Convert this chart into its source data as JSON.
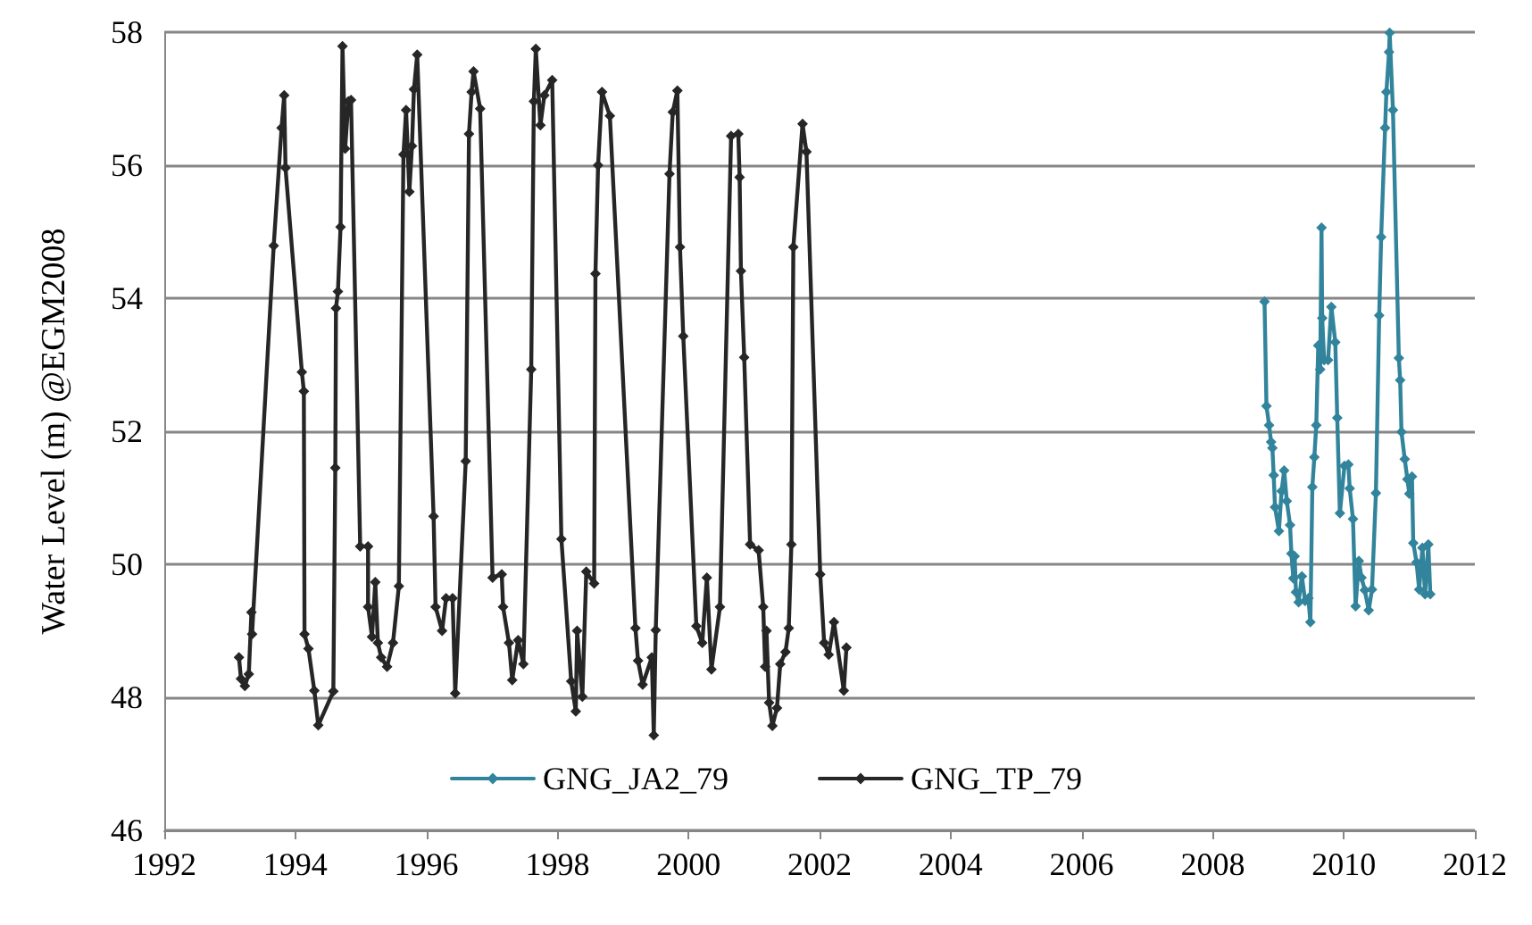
{
  "chart_data": {
    "type": "line",
    "ylabel": "Water Level (m) @EGM2008",
    "xlim": [
      1992,
      2012
    ],
    "xticks": [
      1992,
      1994,
      1996,
      1998,
      2000,
      2002,
      2004,
      2006,
      2008,
      2010,
      2012
    ],
    "ylim": [
      46,
      58
    ],
    "yticks": [
      46,
      48,
      50,
      52,
      54,
      56,
      58
    ],
    "grid": "y",
    "legend": "bottom",
    "marker": "diamond",
    "line_style": "solid",
    "series": [
      {
        "name": "GNG_JA2_79",
        "color": "#31849b",
        "x": [
          2008.79,
          2008.82,
          2008.86,
          2008.89,
          2008.91,
          2008.93,
          2008.95,
          2009.01,
          2009.05,
          2009.09,
          2009.13,
          2009.18,
          2009.2,
          2009.23,
          2009.25,
          2009.27,
          2009.31,
          2009.36,
          2009.41,
          2009.46,
          2009.49,
          2009.52,
          2009.55,
          2009.58,
          2009.61,
          2009.64,
          2009.66,
          2009.67,
          2009.7,
          2009.76,
          2009.81,
          2009.87,
          2009.9,
          2009.94,
          2010.01,
          2010.07,
          2010.09,
          2010.14,
          2010.18,
          2010.23,
          2010.27,
          2010.32,
          2010.38,
          2010.43,
          2010.49,
          2010.54,
          2010.57,
          2010.63,
          2010.65,
          2010.69,
          2010.7,
          2010.75,
          2010.84,
          2010.86,
          2010.88,
          2010.93,
          2010.97,
          2011.0,
          2011.04,
          2011.06,
          2011.11,
          2011.15,
          2011.2,
          2011.24,
          2011.29,
          2011.32
        ],
        "values": [
          53.95,
          52.38,
          52.09,
          51.84,
          51.75,
          51.34,
          50.86,
          50.5,
          51.1,
          51.41,
          50.95,
          50.59,
          50.16,
          49.79,
          50.12,
          49.58,
          49.43,
          49.82,
          49.45,
          49.49,
          49.13,
          51.16,
          51.61,
          52.09,
          53.29,
          52.93,
          55.06,
          53.7,
          53.07,
          53.07,
          53.87,
          53.34,
          52.2,
          50.77,
          51.48,
          51.5,
          51.14,
          50.68,
          49.37,
          50.05,
          49.8,
          49.61,
          49.31,
          49.62,
          51.07,
          53.74,
          54.92,
          56.56,
          57.1,
          57.7,
          57.99,
          56.83,
          53.1,
          52.77,
          51.99,
          51.58,
          51.28,
          51.06,
          51.32,
          50.32,
          50.03,
          49.62,
          50.25,
          49.55,
          50.3,
          49.55
        ]
      },
      {
        "name": "GNG_TP_79",
        "color": "#262626",
        "x": [
          1993.14,
          1993.17,
          1993.23,
          1993.29,
          1993.33,
          1993.34,
          1993.67,
          1993.79,
          1993.83,
          1993.85,
          1994.1,
          1994.13,
          1994.14,
          1994.2,
          1994.29,
          1994.35,
          1994.58,
          1994.61,
          1994.62,
          1994.65,
          1994.69,
          1994.72,
          1994.76,
          1994.81,
          1994.85,
          1994.99,
          1995.11,
          1995.11,
          1995.17,
          1995.22,
          1995.26,
          1995.31,
          1995.4,
          1995.49,
          1995.58,
          1995.65,
          1995.69,
          1995.74,
          1995.78,
          1995.81,
          1995.86,
          1996.11,
          1996.14,
          1996.24,
          1996.3,
          1996.4,
          1996.44,
          1996.6,
          1996.65,
          1996.69,
          1996.72,
          1996.82,
          1997.01,
          1997.15,
          1997.17,
          1997.26,
          1997.31,
          1997.4,
          1997.48,
          1997.6,
          1997.64,
          1997.67,
          1997.74,
          1997.8,
          1997.92,
          1998.06,
          1998.21,
          1998.28,
          1998.3,
          1998.38,
          1998.44,
          1998.56,
          1998.58,
          1998.62,
          1998.68,
          1998.8,
          1999.19,
          1999.23,
          1999.3,
          1999.44,
          1999.47,
          1999.5,
          1999.71,
          1999.76,
          1999.83,
          1999.87,
          1999.92,
          2000.12,
          2000.21,
          2000.28,
          2000.35,
          2000.48,
          2000.65,
          2000.76,
          2000.78,
          2000.8,
          2000.85,
          2000.94,
          2001.07,
          2001.14,
          2001.17,
          2001.19,
          2001.23,
          2001.28,
          2001.35,
          2001.4,
          2001.48,
          2001.53,
          2001.57,
          2001.6,
          2001.74,
          2001.8,
          2002.01,
          2002.07,
          2002.14,
          2002.22,
          2002.37,
          2002.41
        ],
        "values": [
          48.6,
          48.28,
          48.17,
          48.35,
          49.28,
          48.95,
          54.79,
          56.56,
          57.05,
          55.96,
          52.89,
          52.6,
          48.95,
          48.73,
          48.1,
          47.58,
          48.09,
          51.45,
          53.85,
          54.1,
          55.07,
          57.79,
          56.25,
          56.96,
          56.98,
          50.27,
          50.27,
          49.36,
          48.91,
          49.73,
          48.82,
          48.6,
          48.46,
          48.82,
          49.67,
          56.16,
          56.83,
          55.6,
          56.29,
          57.14,
          57.66,
          50.72,
          49.36,
          49.0,
          49.49,
          49.49,
          48.06,
          51.55,
          56.47,
          57.1,
          57.41,
          56.85,
          49.8,
          49.85,
          49.36,
          48.82,
          48.26,
          48.86,
          48.5,
          52.93,
          56.96,
          57.75,
          56.6,
          57.05,
          57.28,
          50.38,
          48.24,
          47.79,
          49.0,
          48.01,
          49.89,
          49.71,
          54.37,
          56.0,
          57.1,
          56.74,
          49.04,
          48.55,
          48.19,
          48.6,
          47.43,
          49.01,
          55.87,
          56.8,
          57.12,
          54.77,
          53.43,
          49.07,
          48.82,
          49.8,
          48.42,
          49.36,
          56.44,
          56.47,
          55.82,
          54.41,
          53.11,
          50.3,
          50.21,
          49.36,
          48.46,
          49.0,
          47.92,
          47.57,
          47.84,
          48.5,
          48.68,
          49.04,
          50.3,
          54.77,
          56.62,
          56.2,
          49.85,
          48.82,
          48.64,
          49.13,
          48.1,
          48.75
        ]
      }
    ]
  }
}
